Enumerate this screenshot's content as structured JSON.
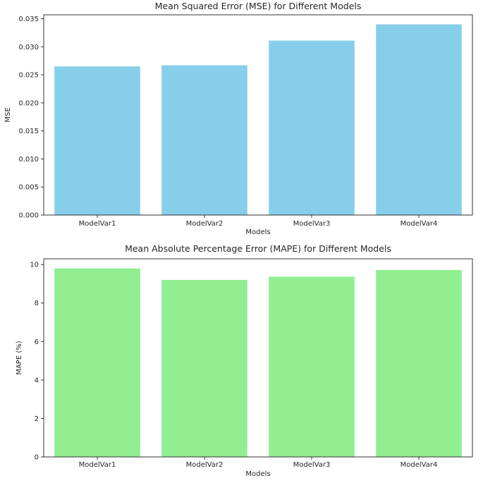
{
  "chart_data": [
    {
      "type": "bar",
      "title": "Mean Squared Error (MSE) for Different Models",
      "xlabel": "Models",
      "ylabel": "MSE",
      "categories": [
        "ModelVar1",
        "ModelVar2",
        "ModelVar3",
        "ModelVar4"
      ],
      "values": [
        0.0265,
        0.0267,
        0.0311,
        0.034
      ],
      "ylim": [
        0,
        0.0357
      ],
      "yticks": [
        "0.000",
        "0.005",
        "0.010",
        "0.015",
        "0.020",
        "0.025",
        "0.030",
        "0.035"
      ],
      "ytick_values": [
        0,
        0.005,
        0.01,
        0.015,
        0.02,
        0.025,
        0.03,
        0.035
      ],
      "bar_color": "#87ceeb",
      "grid": false
    },
    {
      "type": "bar",
      "title": "Mean Absolute Percentage Error (MAPE) for Different Models",
      "xlabel": "Models",
      "ylabel": "MAPE (%)",
      "categories": [
        "ModelVar1",
        "ModelVar2",
        "ModelVar3",
        "ModelVar4"
      ],
      "values": [
        9.8,
        9.2,
        9.37,
        9.72
      ],
      "ylim": [
        0,
        10.3
      ],
      "yticks": [
        "0",
        "2",
        "4",
        "6",
        "8",
        "10"
      ],
      "ytick_values": [
        0,
        2,
        4,
        6,
        8,
        10
      ],
      "bar_color": "#90ee90",
      "grid": false
    }
  ]
}
